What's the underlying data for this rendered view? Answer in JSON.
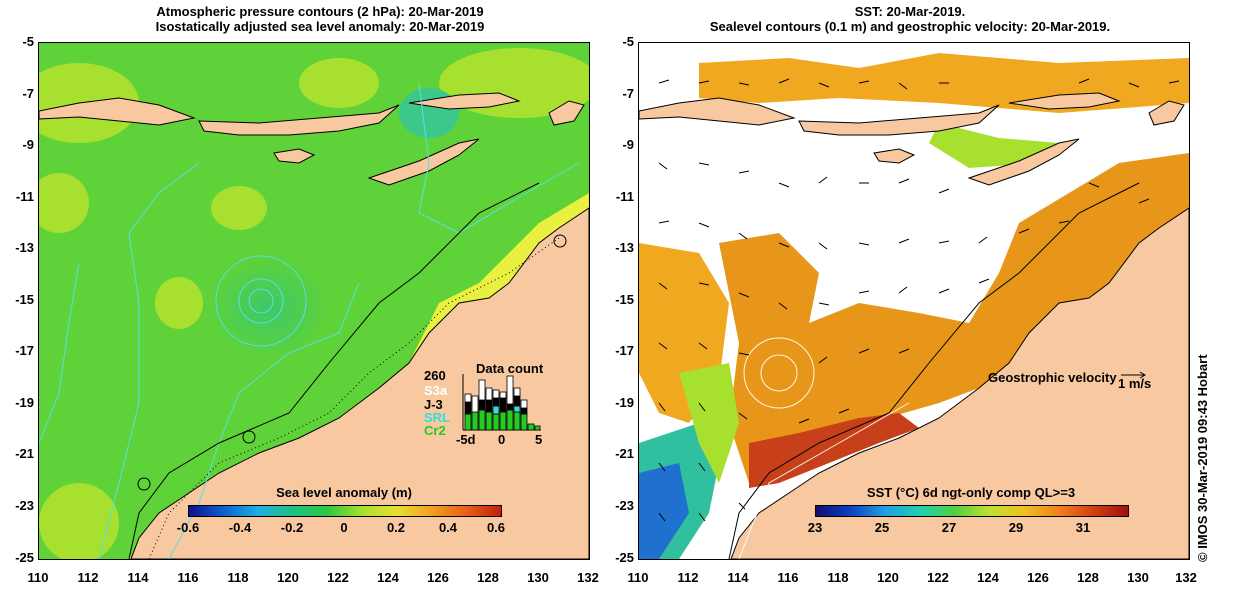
{
  "left_panel": {
    "title_line1": "Atmospheric pressure contours (2 hPa): 20-Mar-2019",
    "title_line2": "Isostatically adjusted sea level anomaly: 20-Mar-2019",
    "colorbar": {
      "title": "Sea level anomaly (m)",
      "ticks": [
        "-0.6",
        "-0.4",
        "-0.2",
        "0",
        "0.2",
        "0.4",
        "0.6"
      ]
    },
    "data_count": {
      "title": "Data count",
      "max": "260",
      "satellites": [
        {
          "name": "S3a",
          "color": "#ffffff"
        },
        {
          "name": "J-3",
          "color": "#000000"
        },
        {
          "name": "SRL",
          "color": "#33dddd"
        },
        {
          "name": "Cr2",
          "color": "#22cc22"
        }
      ],
      "axis_ticks": [
        "-5d",
        "0",
        "5"
      ]
    }
  },
  "right_panel": {
    "title_line1": "SST: 20-Mar-2019.",
    "title_line2": "Sealevel contours (0.1 m) and geostrophic velocity: 20-Mar-2019.",
    "velocity_label": "Geostrophic velocity",
    "velocity_scale": "1 m/s",
    "colorbar": {
      "title": "SST (°C) 6d ngt-only comp QL>=3",
      "ticks": [
        "23",
        "25",
        "27",
        "29",
        "31"
      ]
    }
  },
  "axes": {
    "lat_ticks": [
      "-5",
      "-7",
      "-9",
      "-11",
      "-13",
      "-15",
      "-17",
      "-19",
      "-21",
      "-23",
      "-25"
    ],
    "lon_ticks": [
      "110",
      "112",
      "114",
      "116",
      "118",
      "120",
      "122",
      "124",
      "126",
      "128",
      "130",
      "132"
    ]
  },
  "credit": "© IMOS 30-Mar-2019 09:43 Hobart",
  "colors": {
    "land": "#f8c8a0",
    "ocean_green": "#5fd23a",
    "ocean_yellowgreen": "#a8e030",
    "ocean_yellow": "#e8f040",
    "sst_orange": "#e8961a",
    "sst_red": "#c8401a",
    "sst_white": "#ffffff",
    "contour_cyan": "#55e0e0"
  }
}
